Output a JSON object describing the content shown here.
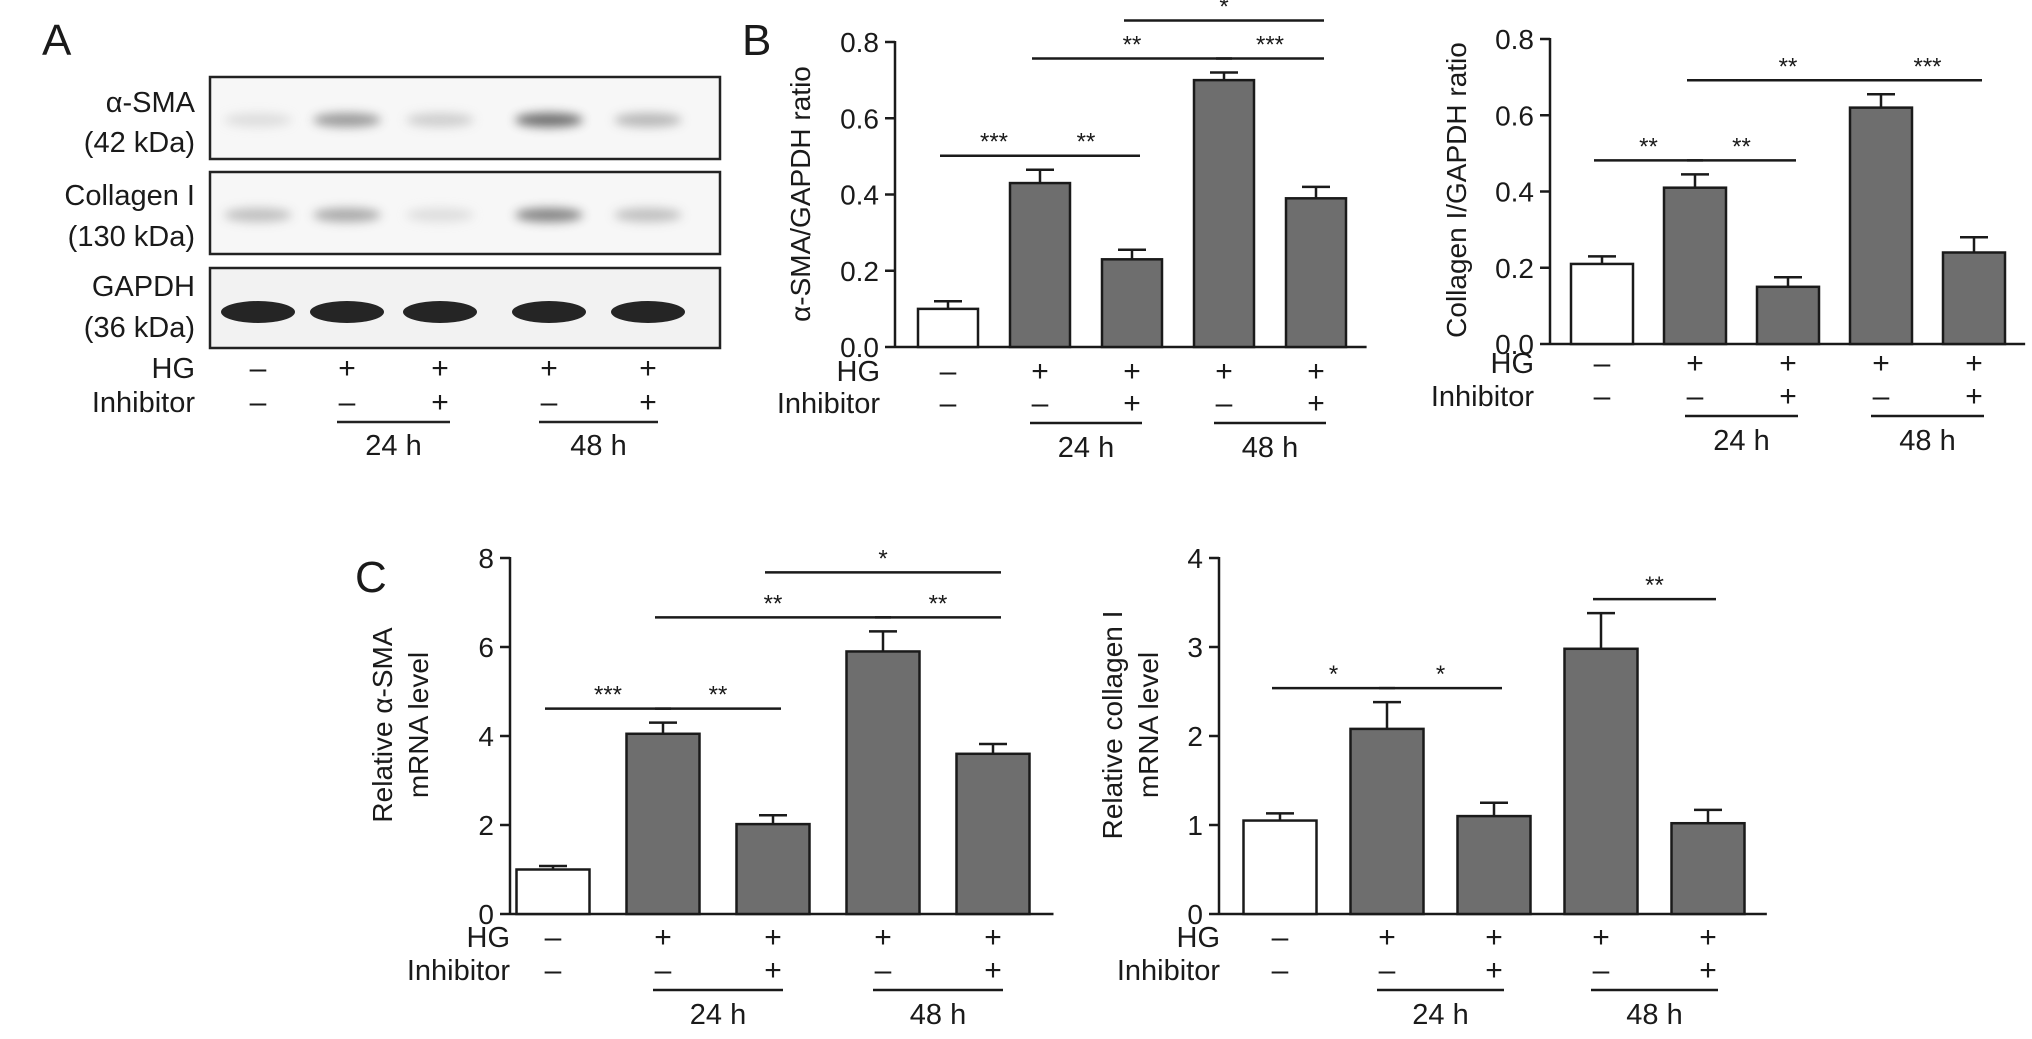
{
  "panel_labels": [
    "A",
    "B",
    "C"
  ],
  "blot": {
    "rows": [
      {
        "name": "α-SMA",
        "size": "(42 kDa)"
      },
      {
        "name": "Collagen I",
        "size": "(130 kDa)"
      },
      {
        "name": "GAPDH",
        "size": "(36 kDa)"
      }
    ],
    "band_intensity": [
      [
        0.1,
        0.55,
        0.2,
        0.85,
        0.35
      ],
      [
        0.3,
        0.45,
        0.1,
        0.7,
        0.3
      ],
      [
        1.0,
        1.0,
        1.0,
        1.0,
        1.0
      ]
    ]
  },
  "conditions": {
    "hg_label": "HG",
    "inhibitor_label": "Inhibitor",
    "hg": [
      "–",
      "+",
      "+",
      "+",
      "+"
    ],
    "inhibitor": [
      "–",
      "–",
      "+",
      "–",
      "+"
    ],
    "groups": [
      "24 h",
      "48 h"
    ]
  },
  "colors": {
    "control_bar": "#ffffff",
    "treated_bar": "#6e6e6e",
    "outline": "#1a1a1a"
  },
  "chart_data": [
    {
      "type": "bar",
      "ylabel": "α-SMA/GAPDH ratio",
      "ylim": [
        0,
        0.8
      ],
      "yticks": [
        "0.0",
        "0.2",
        "0.4",
        "0.6",
        "0.8"
      ],
      "values": [
        0.1,
        0.43,
        0.23,
        0.7,
        0.39
      ],
      "errors": [
        0.02,
        0.035,
        0.025,
        0.02,
        0.03
      ],
      "sig": [
        {
          "from": 0,
          "to": 1,
          "label": "***"
        },
        {
          "from": 1,
          "to": 2,
          "label": "**"
        },
        {
          "from": 1,
          "to": 3,
          "label": "**"
        },
        {
          "from": 3,
          "to": 4,
          "label": "***"
        },
        {
          "from": 2,
          "to": 4,
          "label": "*"
        }
      ]
    },
    {
      "type": "bar",
      "ylabel": "Collagen I/GAPDH ratio",
      "ylim": [
        0,
        0.8
      ],
      "yticks": [
        "0.0",
        "0.2",
        "0.4",
        "0.6",
        "0.8"
      ],
      "values": [
        0.21,
        0.41,
        0.15,
        0.62,
        0.24
      ],
      "errors": [
        0.02,
        0.035,
        0.025,
        0.035,
        0.04
      ],
      "sig": [
        {
          "from": 0,
          "to": 1,
          "label": "**"
        },
        {
          "from": 1,
          "to": 2,
          "label": "**"
        },
        {
          "from": 1,
          "to": 3,
          "label": "**"
        },
        {
          "from": 3,
          "to": 4,
          "label": "***"
        }
      ]
    },
    {
      "type": "bar",
      "ylabel": [
        "Relative α-SMA",
        "mRNA level"
      ],
      "ylim": [
        0,
        8
      ],
      "yticks": [
        "0",
        "2",
        "4",
        "6",
        "8"
      ],
      "values": [
        1.0,
        4.05,
        2.02,
        5.9,
        3.6
      ],
      "errors": [
        0.08,
        0.25,
        0.2,
        0.45,
        0.22
      ],
      "sig": [
        {
          "from": 0,
          "to": 1,
          "label": "***"
        },
        {
          "from": 1,
          "to": 2,
          "label": "**"
        },
        {
          "from": 1,
          "to": 3,
          "label": "**"
        },
        {
          "from": 3,
          "to": 4,
          "label": "**"
        },
        {
          "from": 2,
          "to": 4,
          "label": "*"
        }
      ]
    },
    {
      "type": "bar",
      "ylabel": [
        "Relative collagen I",
        "mRNA level"
      ],
      "ylim": [
        0,
        4
      ],
      "yticks": [
        "0",
        "1",
        "2",
        "3",
        "4"
      ],
      "values": [
        1.05,
        2.08,
        1.1,
        2.98,
        1.02
      ],
      "errors": [
        0.08,
        0.3,
        0.15,
        0.4,
        0.15
      ],
      "sig": [
        {
          "from": 0,
          "to": 1,
          "label": "*"
        },
        {
          "from": 1,
          "to": 2,
          "label": "*"
        },
        {
          "from": 3,
          "to": 4,
          "label": "**"
        }
      ]
    }
  ]
}
